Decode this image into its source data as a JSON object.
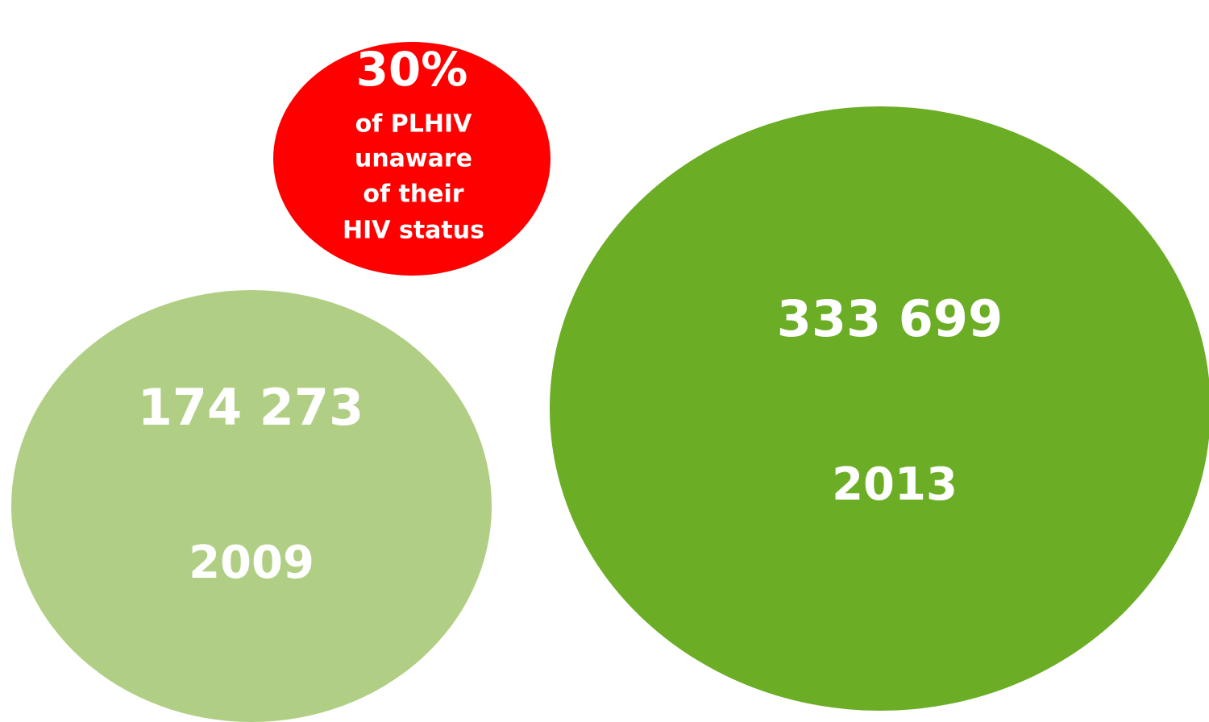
{
  "bubbles": [
    {
      "number": "174 273",
      "year": "2009"
    },
    {
      "number": "333 699",
      "year": "2013"
    }
  ],
  "callout": {
    "percent": "30%",
    "lines": [
      "of PLHIV",
      "unaware",
      "of their",
      "HIV status"
    ]
  }
}
